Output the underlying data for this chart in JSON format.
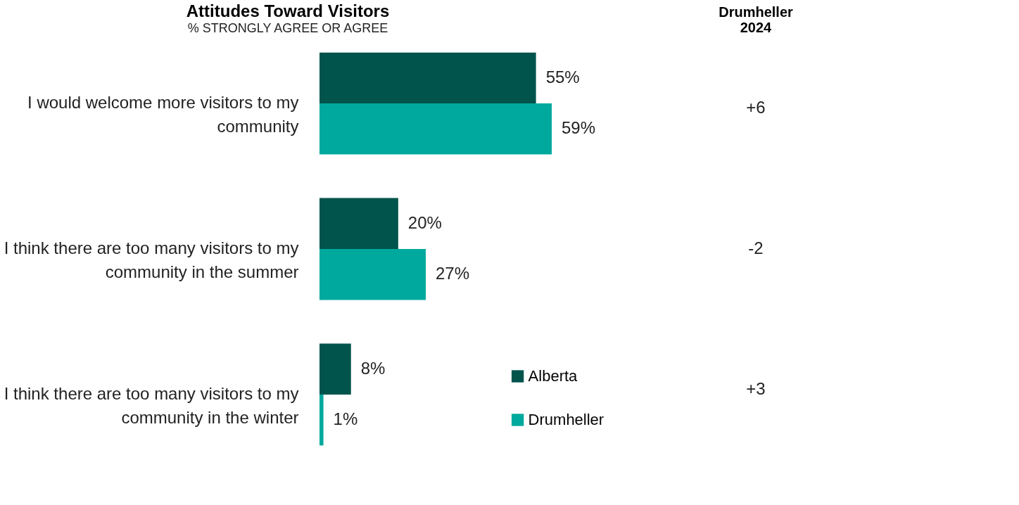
{
  "chart_data": [
    {
      "type": "bar",
      "orientation": "horizontal",
      "title": "Attitudes Toward Visitors",
      "subtitle": "% STRONGLY AGREE OR AGREE",
      "categories": [
        "I would welcome more visitors to my community",
        "I think there are too many visitors to my community in the summer",
        "I think there are too many visitors to my community in the winter"
      ],
      "series": [
        {
          "name": "Alberta",
          "color": "#00544c",
          "values": [
            55,
            20,
            8
          ],
          "value_labels": [
            "55%",
            "20%",
            "8%"
          ]
        },
        {
          "name": "Drumheller",
          "color": "#00a99d",
          "values": [
            59,
            27,
            1
          ],
          "value_labels": [
            "59%",
            "27%",
            "1%"
          ]
        }
      ],
      "legend": "bottom right"
    },
    {
      "type": "other",
      "title": "Drumheller 2024",
      "annotations": [
        "+6",
        "-2",
        "+3"
      ]
    }
  ]
}
